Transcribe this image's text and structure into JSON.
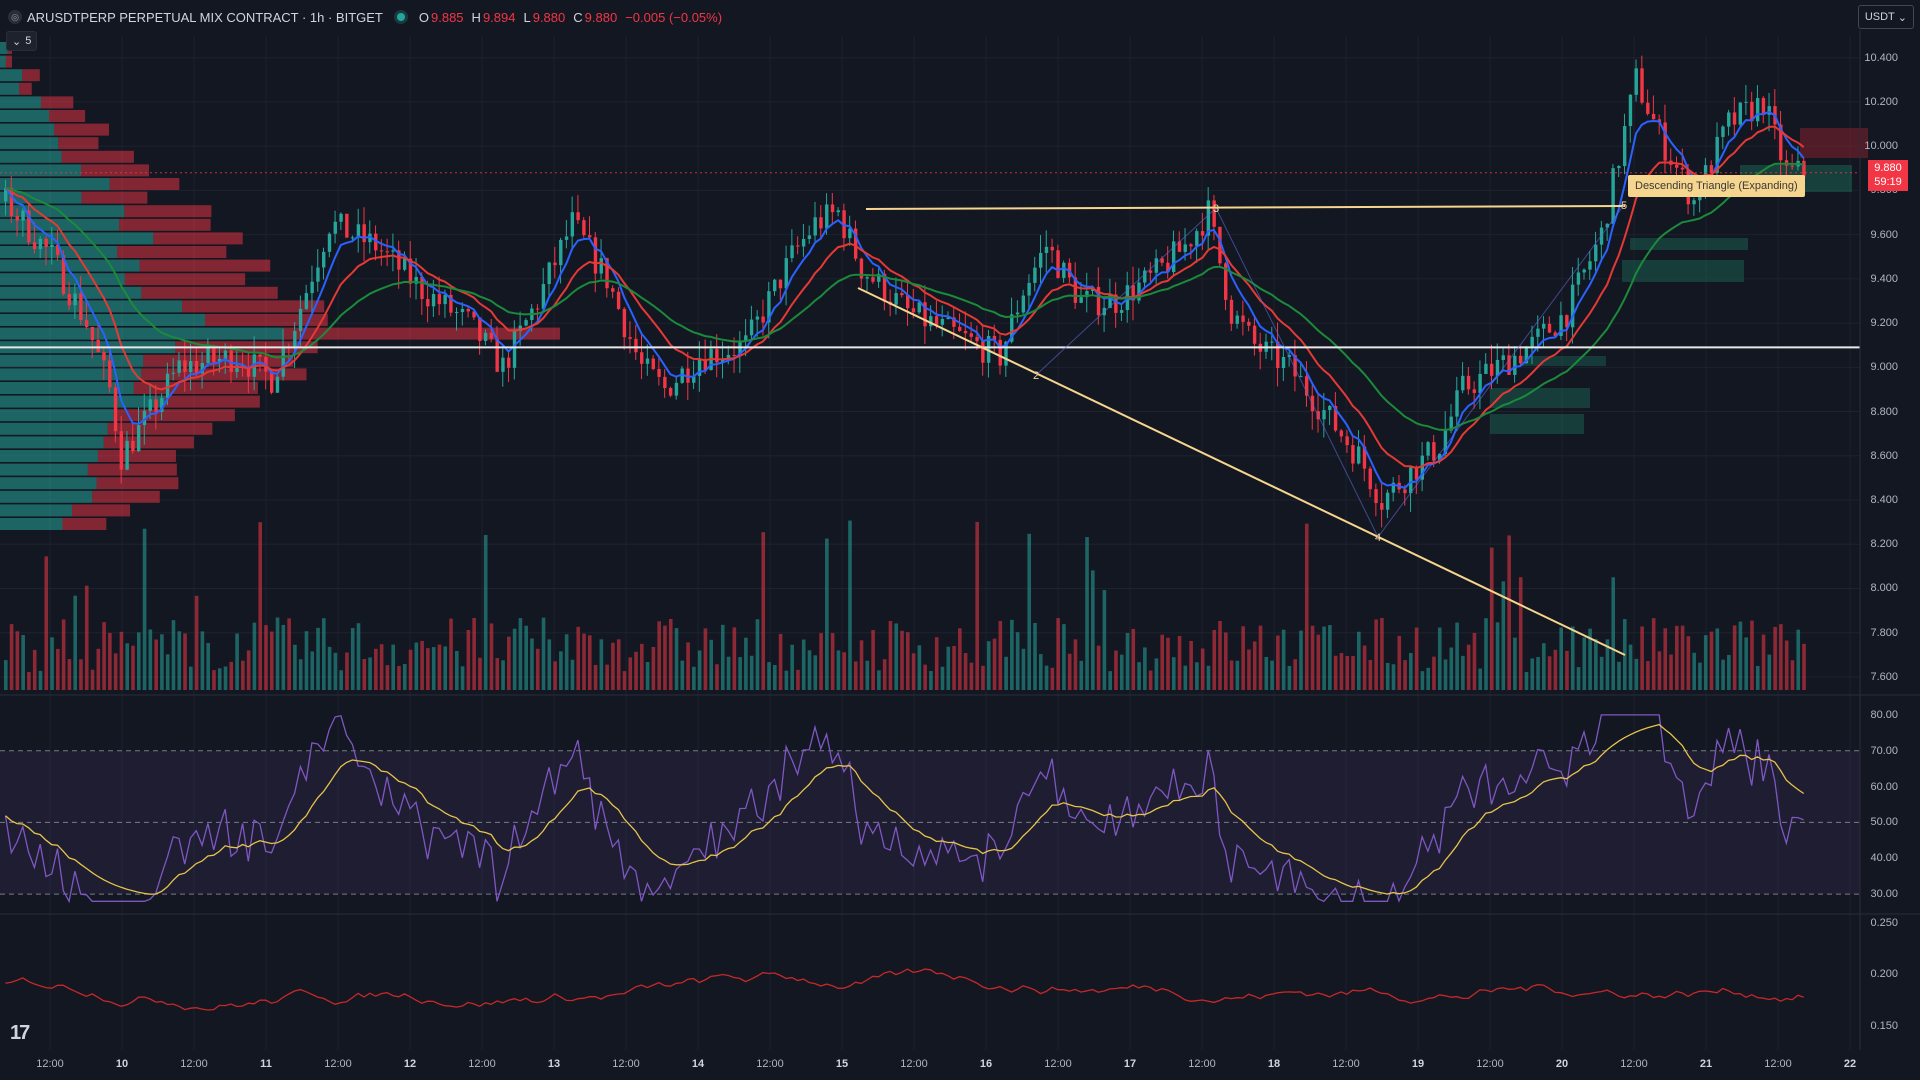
{
  "header": {
    "symbol": "ARUSDTPERP PERPETUAL MIX CONTRACT · 1h · BITGET",
    "o_label": "O",
    "o": "9.885",
    "h_label": "H",
    "h": "9.894",
    "l_label": "L",
    "l": "9.880",
    "c_label": "C",
    "c": "9.880",
    "change": "−0.005 (−0.05%)"
  },
  "indicators_collapsed_count": "5",
  "currency_button": "USDT",
  "last_price": {
    "price": "9.880",
    "countdown": "59:19"
  },
  "pattern_label": "Descending Triangle (Expanding)",
  "pattern_points": [
    "2",
    "3",
    "4",
    "5"
  ],
  "price_axis": [
    "10.400",
    "10.200",
    "10.000",
    "9.800",
    "9.600",
    "9.400",
    "9.200",
    "9.000",
    "8.800",
    "8.600",
    "8.400",
    "8.200",
    "8.000",
    "7.800",
    "7.600"
  ],
  "rsi_axis": [
    "80.00",
    "70.00",
    "60.00",
    "50.00",
    "40.00",
    "30.00"
  ],
  "osc_axis": [
    "0.250",
    "0.200",
    "0.150"
  ],
  "time_axis": [
    {
      "t": "12:00",
      "day": false
    },
    {
      "t": "10",
      "day": true
    },
    {
      "t": "12:00",
      "day": false
    },
    {
      "t": "11",
      "day": true
    },
    {
      "t": "12:00",
      "day": false
    },
    {
      "t": "12",
      "day": true
    },
    {
      "t": "12:00",
      "day": false
    },
    {
      "t": "13",
      "day": true
    },
    {
      "t": "12:00",
      "day": false
    },
    {
      "t": "14",
      "day": true
    },
    {
      "t": "12:00",
      "day": false
    },
    {
      "t": "15",
      "day": true
    },
    {
      "t": "12:00",
      "day": false
    },
    {
      "t": "16",
      "day": true
    },
    {
      "t": "12:00",
      "day": false
    },
    {
      "t": "17",
      "day": true
    },
    {
      "t": "12:00",
      "day": false
    },
    {
      "t": "18",
      "day": true
    },
    {
      "t": "12:00",
      "day": false
    },
    {
      "t": "19",
      "day": true
    },
    {
      "t": "12:00",
      "day": false
    },
    {
      "t": "20",
      "day": true
    },
    {
      "t": "12:00",
      "day": false
    },
    {
      "t": "21",
      "day": true
    },
    {
      "t": "12:00",
      "day": false
    },
    {
      "t": "22",
      "day": true
    }
  ],
  "colors": {
    "up": "#26a69a",
    "down": "#f23645",
    "bg": "#131722",
    "grid": "#1e222d",
    "ema_fast": "#2962ff",
    "ema_mid": "#e53935",
    "ema_slow": "#1b8a3a",
    "trend": "#f6d58e",
    "rsi": "#7e57c2",
    "rsi_ma": "#e6c34a",
    "osc": "#c62828"
  },
  "chart_data": {
    "type": "candlestick",
    "interval": "1h",
    "price_range": [
      7.55,
      10.48
    ],
    "price_path": [
      [
        0,
        9.75
      ],
      [
        8,
        9.5
      ],
      [
        14,
        9.2
      ],
      [
        18,
        8.9
      ],
      [
        20,
        8.6
      ],
      [
        24,
        8.75
      ],
      [
        30,
        9.0
      ],
      [
        40,
        9.05
      ],
      [
        46,
        8.95
      ],
      [
        50,
        9.2
      ],
      [
        56,
        9.65
      ],
      [
        64,
        9.55
      ],
      [
        72,
        9.35
      ],
      [
        80,
        9.2
      ],
      [
        86,
        9.0
      ],
      [
        92,
        9.3
      ],
      [
        98,
        9.65
      ],
      [
        104,
        9.4
      ],
      [
        110,
        9.0
      ],
      [
        114,
        8.9
      ],
      [
        120,
        9.05
      ],
      [
        128,
        9.1
      ],
      [
        136,
        9.5
      ],
      [
        140,
        9.65
      ],
      [
        144,
        9.7
      ],
      [
        148,
        9.45
      ],
      [
        156,
        9.25
      ],
      [
        164,
        9.15
      ],
      [
        172,
        9.05
      ],
      [
        176,
        9.35
      ],
      [
        180,
        9.55
      ],
      [
        186,
        9.3
      ],
      [
        192,
        9.3
      ],
      [
        198,
        9.4
      ],
      [
        204,
        9.55
      ],
      [
        208,
        9.7
      ],
      [
        212,
        9.25
      ],
      [
        216,
        9.1
      ],
      [
        222,
        9.0
      ],
      [
        228,
        8.8
      ],
      [
        234,
        8.6
      ],
      [
        238,
        8.4
      ],
      [
        242,
        8.5
      ],
      [
        248,
        8.65
      ],
      [
        252,
        8.9
      ],
      [
        258,
        9.0
      ],
      [
        264,
        9.1
      ],
      [
        270,
        9.25
      ],
      [
        276,
        9.6
      ],
      [
        282,
        10.3
      ],
      [
        286,
        10.05
      ],
      [
        292,
        9.75
      ],
      [
        298,
        10.1
      ],
      [
        304,
        10.2
      ],
      [
        308,
        9.88
      ]
    ],
    "volume_profile_note": "horizontal volume profile at left",
    "indicators": [
      "EMA fast",
      "EMA mid",
      "EMA slow",
      "RSI",
      "RSI MA",
      "Oscillator"
    ]
  }
}
